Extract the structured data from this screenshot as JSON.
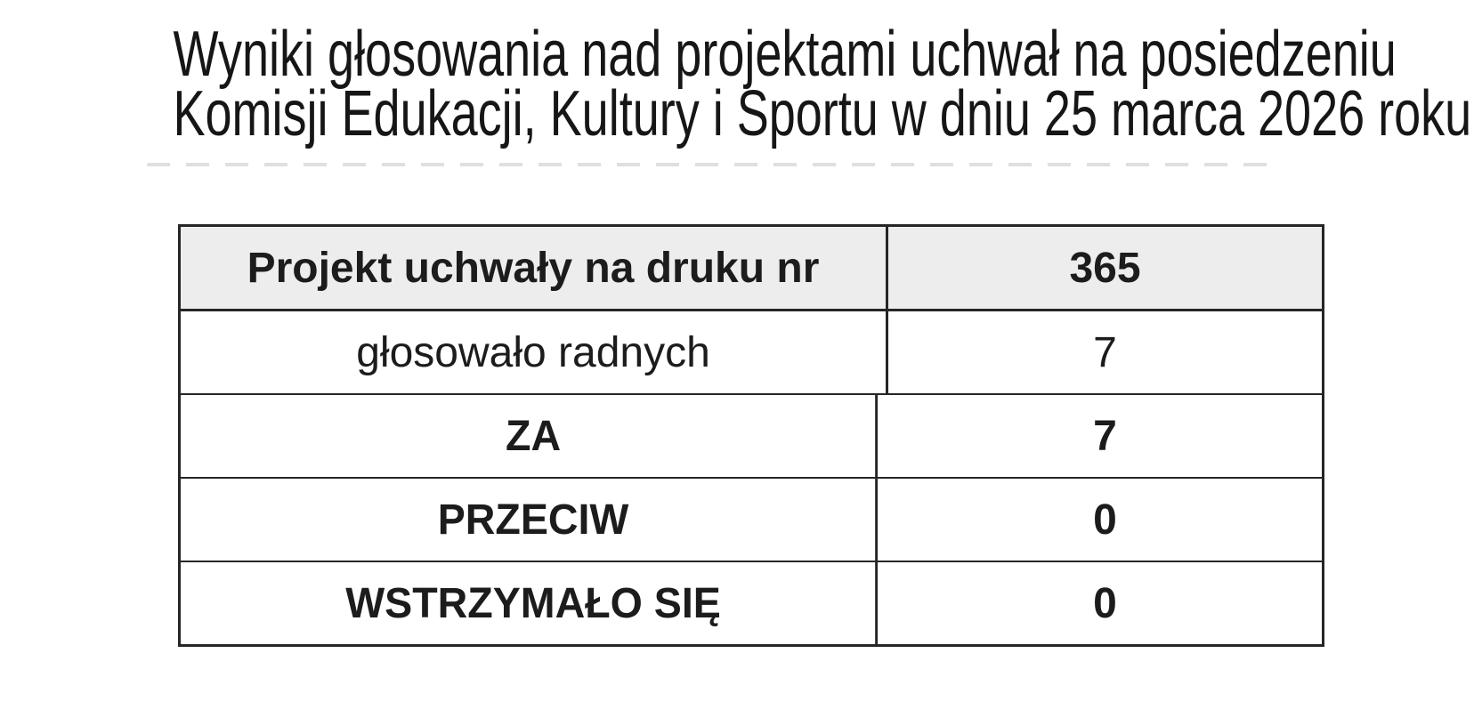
{
  "document": {
    "title_line1": "Wyniki głosowania nad projektami uchwał na posiedzeniu",
    "title_line2": "Komisji Edukacji, Kultury i Sportu w dniu 25 marca 2026 roku"
  },
  "table": {
    "header_row": {
      "label": "Projekt uchwały na druku nr",
      "value": "365"
    },
    "rows": [
      {
        "label": "głosowało radnych",
        "value": "7"
      },
      {
        "label": "ZA",
        "value": "7"
      },
      {
        "label": "PRZECIW",
        "value": "0"
      },
      {
        "label": "WSTRZYMAŁO SIĘ",
        "value": "0"
      }
    ]
  },
  "colors": {
    "paper": "#ffffff",
    "text": "#1c1c1c",
    "border": "#262626",
    "header_row_bg": "#ededed"
  }
}
